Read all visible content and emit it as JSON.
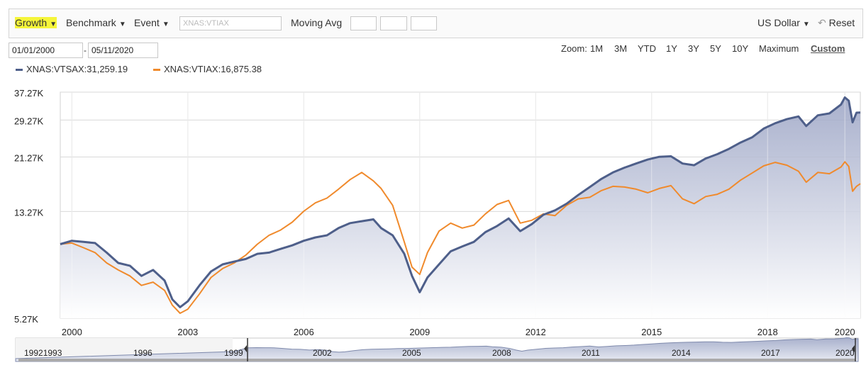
{
  "toolbar": {
    "growth": "Growth",
    "benchmark": "Benchmark",
    "event": "Event",
    "symbol_placeholder": "XNAS:VTIAX",
    "moving_avg": "Moving Avg",
    "currency": "US Dollar",
    "reset": "Reset",
    "caret": "▼",
    "reset_icon": "↶"
  },
  "range": {
    "start": "01/01/2000",
    "end": "05/11/2020",
    "separator": "-"
  },
  "zoom": {
    "label": "Zoom:",
    "options": [
      "1M",
      "3M",
      "YTD",
      "1Y",
      "3Y",
      "5Y",
      "10Y",
      "Maximum",
      "Custom"
    ]
  },
  "legend": [
    {
      "text": "XNAS:VTSAX:31,259.19",
      "color": "#4e5f8a"
    },
    {
      "text": "XNAS:VTIAX:16,875.38",
      "color": "#f08a2c"
    }
  ],
  "navigator": {
    "labels": [
      "19921993",
      "1996",
      "1999",
      "2002",
      "2005",
      "2008",
      "2011",
      "2014",
      "2017",
      "2020"
    ]
  },
  "chart_data": {
    "type": "line",
    "title": "",
    "xlabel": "",
    "ylabel": "",
    "x_start": 1999.7,
    "x_end": 2020.4,
    "x_ticks": [
      "2000",
      "2003",
      "2006",
      "2009",
      "2012",
      "2015",
      "2018",
      "2020"
    ],
    "x_tick_values": [
      2000,
      2003,
      2006,
      2009,
      2012,
      2015,
      2018,
      2020
    ],
    "y_ticks": [
      "37.27K",
      "29.27K",
      "21.27K",
      "13.27K",
      "5.27K"
    ],
    "y_tick_values": [
      37270,
      29270,
      21270,
      13270,
      5270
    ],
    "ylim": [
      5270,
      37270
    ],
    "y_scale": "log",
    "grid": true,
    "legend": "top-left",
    "series": [
      {
        "name": "XNAS:VTSAX",
        "color": "#4e5f8a",
        "area": true,
        "points": [
          [
            1999.7,
            10000
          ],
          [
            2000.0,
            10300
          ],
          [
            2000.3,
            10200
          ],
          [
            2000.6,
            10100
          ],
          [
            2000.9,
            9300
          ],
          [
            2001.2,
            8500
          ],
          [
            2001.5,
            8300
          ],
          [
            2001.8,
            7600
          ],
          [
            2002.1,
            8000
          ],
          [
            2002.4,
            7300
          ],
          [
            2002.6,
            6200
          ],
          [
            2002.8,
            5800
          ],
          [
            2003.0,
            6100
          ],
          [
            2003.3,
            7000
          ],
          [
            2003.6,
            7900
          ],
          [
            2003.9,
            8400
          ],
          [
            2004.2,
            8600
          ],
          [
            2004.5,
            8800
          ],
          [
            2004.8,
            9200
          ],
          [
            2005.1,
            9300
          ],
          [
            2005.4,
            9600
          ],
          [
            2005.7,
            9900
          ],
          [
            2006.0,
            10300
          ],
          [
            2006.3,
            10600
          ],
          [
            2006.6,
            10800
          ],
          [
            2006.9,
            11500
          ],
          [
            2007.2,
            12000
          ],
          [
            2007.5,
            12200
          ],
          [
            2007.8,
            12400
          ],
          [
            2008.0,
            11500
          ],
          [
            2008.3,
            10800
          ],
          [
            2008.6,
            9200
          ],
          [
            2008.8,
            7600
          ],
          [
            2009.0,
            6600
          ],
          [
            2009.2,
            7500
          ],
          [
            2009.5,
            8400
          ],
          [
            2009.8,
            9400
          ],
          [
            2010.1,
            9800
          ],
          [
            2010.4,
            10200
          ],
          [
            2010.7,
            11100
          ],
          [
            2011.0,
            11700
          ],
          [
            2011.3,
            12500
          ],
          [
            2011.6,
            11200
          ],
          [
            2011.9,
            11900
          ],
          [
            2012.2,
            12900
          ],
          [
            2012.5,
            13400
          ],
          [
            2012.8,
            14200
          ],
          [
            2013.1,
            15300
          ],
          [
            2013.4,
            16400
          ],
          [
            2013.7,
            17600
          ],
          [
            2014.0,
            18600
          ],
          [
            2014.3,
            19400
          ],
          [
            2014.6,
            20100
          ],
          [
            2014.9,
            20800
          ],
          [
            2015.2,
            21300
          ],
          [
            2015.5,
            21400
          ],
          [
            2015.8,
            20100
          ],
          [
            2016.1,
            19800
          ],
          [
            2016.4,
            21000
          ],
          [
            2016.7,
            21800
          ],
          [
            2017.0,
            22800
          ],
          [
            2017.3,
            24100
          ],
          [
            2017.6,
            25200
          ],
          [
            2017.9,
            27200
          ],
          [
            2018.2,
            28500
          ],
          [
            2018.5,
            29500
          ],
          [
            2018.8,
            30200
          ],
          [
            2019.0,
            27800
          ],
          [
            2019.3,
            30500
          ],
          [
            2019.6,
            31000
          ],
          [
            2019.9,
            33500
          ],
          [
            2020.0,
            35600
          ],
          [
            2020.1,
            34600
          ],
          [
            2020.2,
            28700
          ],
          [
            2020.3,
            31200
          ],
          [
            2020.4,
            31259
          ]
        ]
      },
      {
        "name": "XNAS:VTIAX",
        "color": "#f08a2c",
        "area": false,
        "points": [
          [
            1999.7,
            10000
          ],
          [
            2000.0,
            10100
          ],
          [
            2000.3,
            9700
          ],
          [
            2000.6,
            9300
          ],
          [
            2000.9,
            8500
          ],
          [
            2001.2,
            8000
          ],
          [
            2001.5,
            7600
          ],
          [
            2001.8,
            7000
          ],
          [
            2002.1,
            7200
          ],
          [
            2002.4,
            6700
          ],
          [
            2002.6,
            5900
          ],
          [
            2002.8,
            5500
          ],
          [
            2003.0,
            5700
          ],
          [
            2003.3,
            6500
          ],
          [
            2003.6,
            7500
          ],
          [
            2003.9,
            8100
          ],
          [
            2004.2,
            8500
          ],
          [
            2004.5,
            9100
          ],
          [
            2004.8,
            10000
          ],
          [
            2005.1,
            10800
          ],
          [
            2005.4,
            11300
          ],
          [
            2005.7,
            12100
          ],
          [
            2006.0,
            13300
          ],
          [
            2006.3,
            14300
          ],
          [
            2006.6,
            14900
          ],
          [
            2006.9,
            16100
          ],
          [
            2007.2,
            17500
          ],
          [
            2007.5,
            18600
          ],
          [
            2007.8,
            17300
          ],
          [
            2008.0,
            16200
          ],
          [
            2008.3,
            14000
          ],
          [
            2008.6,
            10200
          ],
          [
            2008.8,
            8200
          ],
          [
            2009.0,
            7700
          ],
          [
            2009.2,
            9300
          ],
          [
            2009.5,
            11200
          ],
          [
            2009.8,
            12000
          ],
          [
            2010.1,
            11500
          ],
          [
            2010.4,
            11800
          ],
          [
            2010.7,
            13000
          ],
          [
            2011.0,
            14100
          ],
          [
            2011.3,
            14600
          ],
          [
            2011.6,
            12000
          ],
          [
            2011.9,
            12300
          ],
          [
            2012.2,
            13000
          ],
          [
            2012.5,
            12800
          ],
          [
            2012.8,
            14000
          ],
          [
            2013.1,
            14800
          ],
          [
            2013.4,
            15000
          ],
          [
            2013.7,
            15900
          ],
          [
            2014.0,
            16500
          ],
          [
            2014.3,
            16400
          ],
          [
            2014.6,
            16100
          ],
          [
            2014.9,
            15600
          ],
          [
            2015.2,
            16200
          ],
          [
            2015.5,
            16600
          ],
          [
            2015.8,
            14800
          ],
          [
            2016.1,
            14200
          ],
          [
            2016.4,
            15100
          ],
          [
            2016.7,
            15400
          ],
          [
            2017.0,
            16100
          ],
          [
            2017.3,
            17400
          ],
          [
            2017.6,
            18500
          ],
          [
            2017.9,
            19700
          ],
          [
            2018.2,
            20300
          ],
          [
            2018.5,
            19800
          ],
          [
            2018.8,
            18800
          ],
          [
            2019.0,
            17100
          ],
          [
            2019.3,
            18600
          ],
          [
            2019.6,
            18400
          ],
          [
            2019.9,
            19500
          ],
          [
            2020.0,
            20400
          ],
          [
            2020.1,
            19600
          ],
          [
            2020.2,
            15800
          ],
          [
            2020.3,
            16500
          ],
          [
            2020.4,
            16875
          ]
        ]
      }
    ]
  }
}
